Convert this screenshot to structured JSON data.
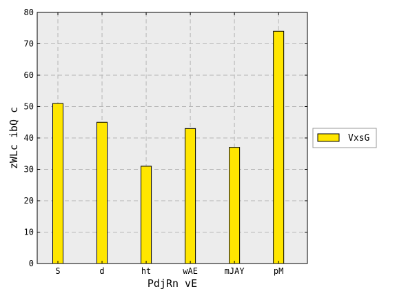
{
  "chart_data": {
    "type": "bar",
    "categories": [
      "S",
      "d",
      "ht",
      "wAE",
      "mJAY",
      "pM"
    ],
    "series": [
      {
        "name": "VxsG",
        "values": [
          51,
          45,
          31,
          43,
          37,
          74
        ],
        "color": "#ffe600"
      }
    ],
    "title": "",
    "xlabel": "PdjRn vE",
    "ylabel": "zWLc ibQ c",
    "ylim": [
      0,
      80
    ],
    "yticks": [
      0,
      10,
      20,
      30,
      40,
      50,
      60,
      70,
      80
    ],
    "grid": true,
    "legend_position": "right",
    "background_color": "#ececec"
  }
}
